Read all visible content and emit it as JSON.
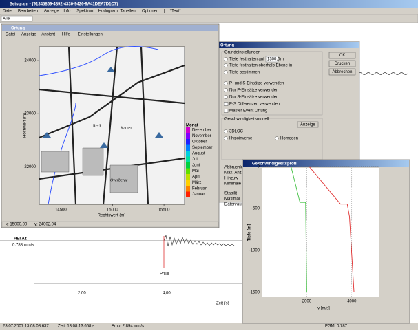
{
  "window": {
    "title": "Seisgram - {91345869-4892-4330-9426-9A41DEA7D1C7}",
    "menu": [
      "Datei",
      "Bearbeiten",
      "Anzeige",
      "Info",
      "Spektrum",
      "Hodogram",
      "Tabellen",
      "Optionen",
      "|",
      "*Text*"
    ],
    "combo": "Alle"
  },
  "map_window": {
    "title": "Ortung",
    "menu": [
      "Datei",
      "Anzeige",
      "Ansicht",
      "Hilfe",
      "Einstellungen"
    ],
    "ylabel": "Hochwert (m)",
    "xlabel": "Rechtswert (m)",
    "ylim": [
      21290,
      24260
    ],
    "xlim": [
      14290,
      15700
    ],
    "yticks": [
      24000,
      23000,
      22000
    ],
    "xticks": [
      14500,
      15000,
      15500
    ],
    "places": [
      "Reck",
      "Kamer",
      "Overberge"
    ],
    "legend_title": "Monat",
    "legend": [
      {
        "name": "Dezember",
        "color": "#d000d0"
      },
      {
        "name": "November",
        "color": "#8000ff"
      },
      {
        "name": "Oktober",
        "color": "#2020ff"
      },
      {
        "name": "September",
        "color": "#0080ff"
      },
      {
        "name": "August",
        "color": "#00d0e0"
      },
      {
        "name": "Juli",
        "color": "#00e0a0"
      },
      {
        "name": "Juni",
        "color": "#00d040"
      },
      {
        "name": "Mai",
        "color": "#60e000"
      },
      {
        "name": "April",
        "color": "#c0e000"
      },
      {
        "name": "März",
        "color": "#ffd000"
      },
      {
        "name": "Februar",
        "color": "#ff8000"
      },
      {
        "name": "Januar",
        "color": "#ff2000"
      }
    ],
    "status": [
      "x: 15000.00",
      "y: 24002.04"
    ]
  },
  "dialog": {
    "title": "Ortung",
    "group1": "Grundeinstellungen",
    "depth_option": "Tiefe festhalten auf",
    "depth_value": "1300,0",
    "unit": "m",
    "options": [
      "Tiefe festhalten oberhalb Ebene in",
      "Tiefe bestimmen",
      "P- und S-Einsätze verwenden",
      "Nur P-Einsätze verwenden",
      "Nur S-Einsätze verwenden",
      "P-S Differenzen verwenden",
      "Master Event Ortung"
    ],
    "group2": "Geschwindigkeitsmodell",
    "show": "Anzeige",
    "models": [
      "3DLOC",
      "Hypoinverse",
      "Homogen"
    ],
    "hidden": [
      "Abbruchkr",
      "Max. Anz",
      "Hinzuw",
      "Minimale",
      "Stabilit",
      "Maximal",
      "Datenrau"
    ],
    "buttons": [
      "OK",
      "Drucken",
      "Abbrechen"
    ]
  },
  "velocity": {
    "title": "Geschwindigkeitsprofil",
    "xlabel": "v [m/s]",
    "ylabel": "Tiefe [m]",
    "xlim": [
      0,
      5200
    ],
    "ylim": [
      -1560,
      80
    ],
    "xticks": [
      2000,
      4000
    ],
    "yticks": [
      0,
      -500,
      -1000,
      -1500
    ],
    "series": [
      {
        "color": "#40c040",
        "v": [
          1300,
          1700,
          1950,
          2000
        ],
        "depth": [
          0,
          -430,
          -430,
          -1500
        ]
      },
      {
        "color": "#e03030",
        "v": [
          2100,
          3500,
          3800,
          3900,
          4100
        ],
        "depth": [
          0,
          -450,
          -450,
          -600,
          -1500
        ]
      }
    ]
  },
  "seismogram": {
    "station": "HEI Az",
    "amplitude": "0.788 mm/s",
    "pick": "Pnull",
    "xticks": [
      "2,00",
      "4,00"
    ],
    "xlabel": "Zeit (s)"
  },
  "status": [
    "23.07.2007 13:08:08.637",
    "Zeit: 13:08:13.658 s",
    "Amp: 2.894 mm/s",
    "PGM: 0.787"
  ]
}
